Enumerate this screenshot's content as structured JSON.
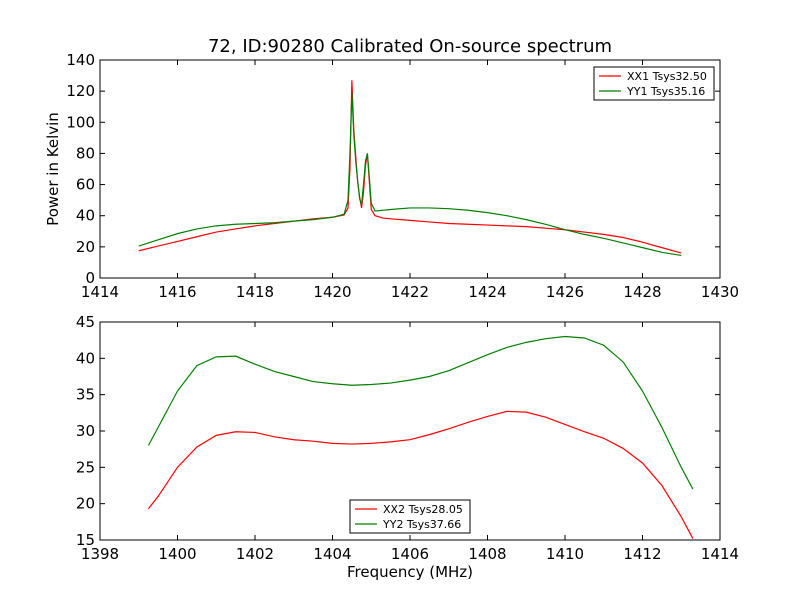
{
  "chart_data": [
    {
      "type": "line",
      "title": "72, ID:90280 Calibrated On-source spectrum",
      "xlabel": "",
      "ylabel": "Power in Kelvin",
      "xlim": [
        1414,
        1430
      ],
      "ylim": [
        0,
        140
      ],
      "xticks": [
        1414,
        1416,
        1418,
        1420,
        1422,
        1424,
        1426,
        1428,
        1430
      ],
      "yticks": [
        0,
        20,
        40,
        60,
        80,
        100,
        120,
        140
      ],
      "grid": false,
      "legend_position": "top-right",
      "series": [
        {
          "name": "XX1 Tsys32.50",
          "color": "#ff0000",
          "points": [
            [
              1415.0,
              17.5
            ],
            [
              1415.5,
              20.5
            ],
            [
              1416.0,
              23.5
            ],
            [
              1416.5,
              26.5
            ],
            [
              1417.0,
              29.5
            ],
            [
              1417.5,
              31.5
            ],
            [
              1418.0,
              33.5
            ],
            [
              1418.5,
              35.0
            ],
            [
              1419.0,
              36.5
            ],
            [
              1419.5,
              38.0
            ],
            [
              1420.0,
              39.0
            ],
            [
              1420.3,
              40.5
            ],
            [
              1420.4,
              45.0
            ],
            [
              1420.45,
              70.0
            ],
            [
              1420.5,
              127.0
            ],
            [
              1420.55,
              95.0
            ],
            [
              1420.6,
              78.0
            ],
            [
              1420.65,
              62.0
            ],
            [
              1420.7,
              52.0
            ],
            [
              1420.75,
              45.0
            ],
            [
              1420.8,
              55.0
            ],
            [
              1420.85,
              72.0
            ],
            [
              1420.9,
              80.0
            ],
            [
              1420.95,
              62.0
            ],
            [
              1421.0,
              44.0
            ],
            [
              1421.1,
              40.0
            ],
            [
              1421.3,
              38.5
            ],
            [
              1421.5,
              38.0
            ],
            [
              1422.0,
              37.0
            ],
            [
              1422.5,
              36.0
            ],
            [
              1423.0,
              35.0
            ],
            [
              1423.5,
              34.5
            ],
            [
              1424.0,
              34.0
            ],
            [
              1424.5,
              33.5
            ],
            [
              1425.0,
              33.0
            ],
            [
              1425.5,
              32.0
            ],
            [
              1426.0,
              31.0
            ],
            [
              1426.5,
              29.5
            ],
            [
              1427.0,
              28.0
            ],
            [
              1427.5,
              26.0
            ],
            [
              1428.0,
              23.0
            ],
            [
              1428.5,
              19.5
            ],
            [
              1429.0,
              16.0
            ]
          ]
        },
        {
          "name": "YY1 Tsys35.16",
          "color": "#008000",
          "points": [
            [
              1415.0,
              20.5
            ],
            [
              1415.5,
              24.5
            ],
            [
              1416.0,
              28.5
            ],
            [
              1416.5,
              31.5
            ],
            [
              1417.0,
              33.5
            ],
            [
              1417.5,
              34.5
            ],
            [
              1418.0,
              35.0
            ],
            [
              1418.5,
              35.5
            ],
            [
              1419.0,
              36.5
            ],
            [
              1419.5,
              37.5
            ],
            [
              1420.0,
              39.0
            ],
            [
              1420.3,
              41.0
            ],
            [
              1420.4,
              50.0
            ],
            [
              1420.45,
              80.0
            ],
            [
              1420.5,
              119.0
            ],
            [
              1420.55,
              92.0
            ],
            [
              1420.6,
              75.0
            ],
            [
              1420.65,
              62.0
            ],
            [
              1420.7,
              51.0
            ],
            [
              1420.75,
              47.0
            ],
            [
              1420.8,
              60.0
            ],
            [
              1420.85,
              75.0
            ],
            [
              1420.9,
              80.0
            ],
            [
              1420.95,
              65.0
            ],
            [
              1421.0,
              48.0
            ],
            [
              1421.1,
              43.0
            ],
            [
              1421.5,
              44.0
            ],
            [
              1422.0,
              45.0
            ],
            [
              1422.5,
              45.0
            ],
            [
              1423.0,
              44.5
            ],
            [
              1423.5,
              43.5
            ],
            [
              1424.0,
              42.0
            ],
            [
              1424.5,
              40.0
            ],
            [
              1425.0,
              37.5
            ],
            [
              1425.5,
              34.5
            ],
            [
              1426.0,
              31.0
            ],
            [
              1426.5,
              28.0
            ],
            [
              1427.0,
              25.5
            ],
            [
              1427.5,
              22.5
            ],
            [
              1428.0,
              19.5
            ],
            [
              1428.5,
              16.5
            ],
            [
              1429.0,
              14.5
            ]
          ]
        }
      ]
    },
    {
      "type": "line",
      "title": "",
      "xlabel": "Frequency (MHz)",
      "ylabel": "",
      "xlim": [
        1398,
        1414
      ],
      "ylim": [
        15,
        45
      ],
      "xticks": [
        1398,
        1400,
        1402,
        1404,
        1406,
        1408,
        1410,
        1412,
        1414
      ],
      "yticks": [
        15,
        20,
        25,
        30,
        35,
        40,
        45
      ],
      "grid": false,
      "legend_position": "bottom-center",
      "series": [
        {
          "name": "XX2 Tsys28.05",
          "color": "#ff0000",
          "points": [
            [
              1399.25,
              19.3
            ],
            [
              1399.5,
              21.0
            ],
            [
              1400.0,
              25.0
            ],
            [
              1400.5,
              27.8
            ],
            [
              1401.0,
              29.4
            ],
            [
              1401.5,
              29.9
            ],
            [
              1402.0,
              29.8
            ],
            [
              1402.5,
              29.2
            ],
            [
              1403.0,
              28.8
            ],
            [
              1403.5,
              28.6
            ],
            [
              1404.0,
              28.3
            ],
            [
              1404.5,
              28.2
            ],
            [
              1405.0,
              28.3
            ],
            [
              1405.5,
              28.5
            ],
            [
              1406.0,
              28.8
            ],
            [
              1406.5,
              29.5
            ],
            [
              1407.0,
              30.3
            ],
            [
              1407.5,
              31.2
            ],
            [
              1408.0,
              32.0
            ],
            [
              1408.5,
              32.7
            ],
            [
              1409.0,
              32.6
            ],
            [
              1409.5,
              31.9
            ],
            [
              1410.0,
              30.9
            ],
            [
              1410.5,
              29.9
            ],
            [
              1411.0,
              29.0
            ],
            [
              1411.5,
              27.6
            ],
            [
              1412.0,
              25.6
            ],
            [
              1412.5,
              22.5
            ],
            [
              1413.0,
              18.2
            ],
            [
              1413.3,
              15.2
            ]
          ]
        },
        {
          "name": "YY2 Tsys37.66",
          "color": "#008000",
          "points": [
            [
              1399.25,
              28.0
            ],
            [
              1399.5,
              30.5
            ],
            [
              1400.0,
              35.5
            ],
            [
              1400.5,
              39.0
            ],
            [
              1401.0,
              40.2
            ],
            [
              1401.5,
              40.3
            ],
            [
              1402.0,
              39.2
            ],
            [
              1402.5,
              38.2
            ],
            [
              1403.0,
              37.5
            ],
            [
              1403.5,
              36.8
            ],
            [
              1404.0,
              36.5
            ],
            [
              1404.5,
              36.3
            ],
            [
              1405.0,
              36.4
            ],
            [
              1405.5,
              36.6
            ],
            [
              1406.0,
              37.0
            ],
            [
              1406.5,
              37.5
            ],
            [
              1407.0,
              38.3
            ],
            [
              1407.5,
              39.4
            ],
            [
              1408.0,
              40.5
            ],
            [
              1408.5,
              41.5
            ],
            [
              1409.0,
              42.2
            ],
            [
              1409.5,
              42.7
            ],
            [
              1410.0,
              43.0
            ],
            [
              1410.5,
              42.8
            ],
            [
              1411.0,
              41.8
            ],
            [
              1411.5,
              39.5
            ],
            [
              1412.0,
              35.5
            ],
            [
              1412.5,
              30.5
            ],
            [
              1413.0,
              25.0
            ],
            [
              1413.3,
              22.0
            ]
          ]
        }
      ]
    }
  ]
}
